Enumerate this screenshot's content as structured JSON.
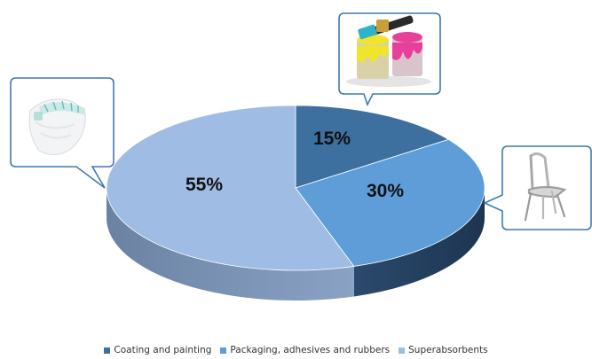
{
  "chart_data": {
    "type": "pie",
    "categories": [
      "Coating and painting",
      "Packaging, adhesives and rubbers",
      "Superabsorbents"
    ],
    "values": [
      15,
      30,
      55
    ],
    "labels": [
      "15%",
      "30%",
      "55%"
    ],
    "colors": [
      "#3d6f9f",
      "#5e9dd8",
      "#9fbde4"
    ],
    "side_colors": [
      "#2a4d72",
      "#233e5c",
      "#5a7291"
    ],
    "style": "3D exploded-free pie, legend at bottom",
    "legend_position": "bottom",
    "callout_icons": [
      {
        "name": "paint-cans-icon",
        "category": "Coating and painting"
      },
      {
        "name": "chair-icon",
        "category": "Packaging, adhesives and rubbers"
      },
      {
        "name": "diaper-icon",
        "category": "Superabsorbents"
      }
    ]
  }
}
